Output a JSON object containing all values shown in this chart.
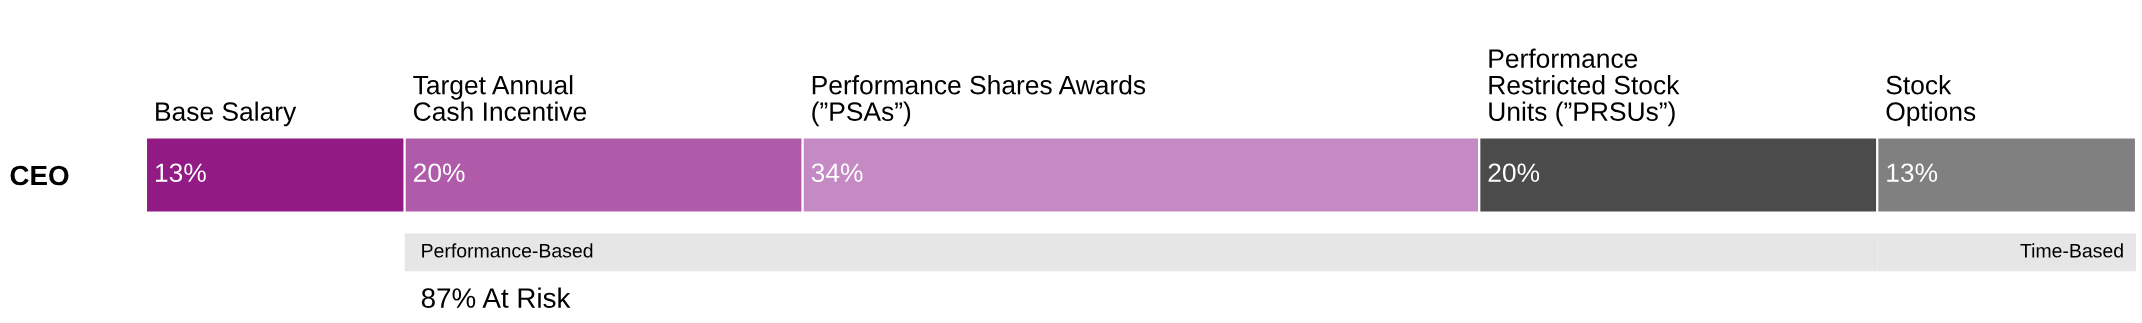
{
  "chart_data": {
    "type": "bar",
    "orientation": "horizontal",
    "stacked": true,
    "categories": [
      "CEO"
    ],
    "series": [
      {
        "name": "Base Salary",
        "color": "#921a84",
        "values": [
          13
        ],
        "value_labels": [
          "13%"
        ]
      },
      {
        "name": "Target Annual\nCash Incentive",
        "color": "#b05ba9",
        "values": [
          20
        ],
        "value_labels": [
          "20%"
        ]
      },
      {
        "name": "Performance Shares Awards\n(”PSAs”)",
        "color": "#c589c3",
        "values": [
          34
        ],
        "value_labels": [
          "34%"
        ]
      },
      {
        "name": "Performance\nRestricted Stock\nUnits (”PRSUs”)",
        "color": "#4b4b4b",
        "values": [
          20
        ],
        "value_labels": [
          "20%"
        ]
      },
      {
        "name": "Stock\nOptions",
        "color": "#808080",
        "values": [
          13
        ],
        "value_labels": [
          "13%"
        ]
      }
    ],
    "bands": [
      {
        "axis": "x",
        "from": 13,
        "to": 87,
        "label": "Performance-Based",
        "color": "#e6e6e6"
      },
      {
        "axis": "x",
        "from": 87,
        "to": 100,
        "label": "Time-Based",
        "color": "#e6e6e6"
      }
    ],
    "annotations": [
      "87% At Risk"
    ],
    "legend": false
  }
}
